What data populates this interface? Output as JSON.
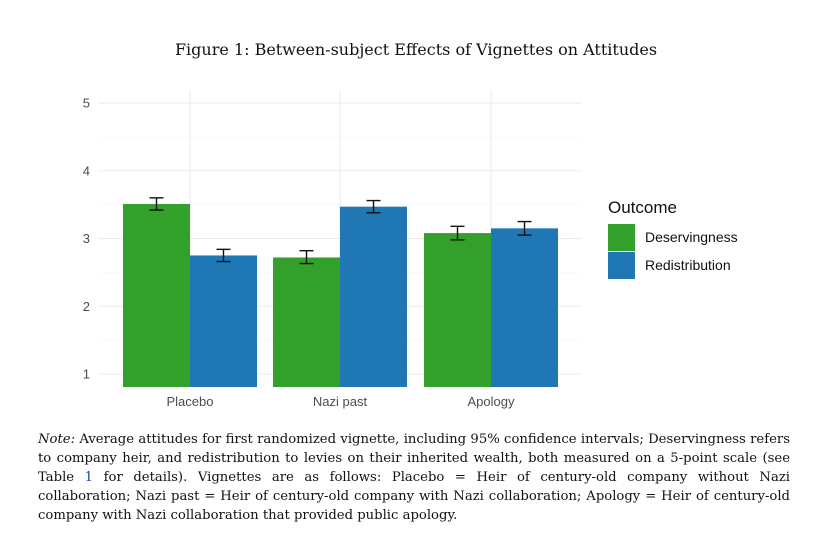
{
  "figure": {
    "title": "Figure 1: Between-subject Effects of Vignettes on Attitudes"
  },
  "note": {
    "label": "Note:",
    "text_before_ref": " Average attitudes for first randomized vignette, including 95% confidence intervals; Deservingness refers to company heir, and redistribution to levies on their inherited wealth, both measured on a 5-point scale (see Table ",
    "ref": "1",
    "text_after_ref": " for details). Vignettes are as follows: Placebo = Heir of century-old company without Nazi collaboration; Nazi past = Heir of century-old company with Nazi collaboration; Apology = Heir of century-old company with Nazi collaboration that provided public apology."
  },
  "chart_data": {
    "type": "bar",
    "categories": [
      "Placebo",
      "Nazi past",
      "Apology"
    ],
    "series": [
      {
        "name": "Deservingness",
        "color": "#33a02c",
        "values": [
          3.51,
          2.72,
          3.08
        ],
        "ci_low": [
          3.42,
          2.63,
          2.98
        ],
        "ci_high": [
          3.6,
          2.82,
          3.18
        ]
      },
      {
        "name": "Redistribution",
        "color": "#1f78b4",
        "values": [
          2.75,
          3.47,
          3.15
        ],
        "ci_low": [
          2.66,
          3.38,
          3.05
        ],
        "ci_high": [
          2.84,
          3.56,
          3.25
        ]
      }
    ],
    "ylim": [
      1,
      5
    ],
    "yticks": [
      1,
      2,
      3,
      4,
      5
    ],
    "grid": true,
    "legend": {
      "title": "Outcome",
      "position": "right"
    },
    "error_bars": "95% confidence intervals"
  }
}
